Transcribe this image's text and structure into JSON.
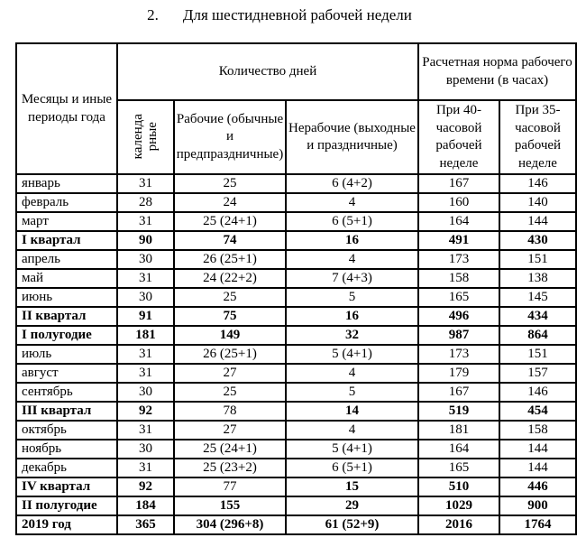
{
  "page": {
    "title_number": "2.",
    "title_text": "Для шестидневной рабочей недели"
  },
  "table": {
    "header": {
      "months": "Месяцы и иные периоды года",
      "days_group": "Количество дней",
      "hours_group": "Расчетная норма рабочего времени (в часах)",
      "calendar_line1": "календа",
      "calendar_line2": "рные",
      "working": "Рабочие (обычные и предпраздничные)",
      "nonworking": "Нерабочие (выходные и праздничные)",
      "week40": "При 40-часовой рабочей неделе",
      "week35": "При 35-часовой рабочей неделе"
    },
    "rows": [
      {
        "label": "январь",
        "calendar": "31",
        "working": "25",
        "nonworking": "6 (4+2)",
        "h40": "167",
        "h35": "146",
        "bold": false
      },
      {
        "label": "февраль",
        "calendar": "28",
        "working": "24",
        "nonworking": "4",
        "h40": "160",
        "h35": "140",
        "bold": false
      },
      {
        "label": "март",
        "calendar": "31",
        "working": "25 (24+1)",
        "nonworking": "6 (5+1)",
        "h40": "164",
        "h35": "144",
        "bold": false
      },
      {
        "label": "I квартал",
        "calendar": "90",
        "working": "74",
        "nonworking": "16",
        "h40": "491",
        "h35": "430",
        "bold": true
      },
      {
        "label": "апрель",
        "calendar": "30",
        "working": "26 (25+1)",
        "nonworking": "4",
        "h40": "173",
        "h35": "151",
        "bold": false
      },
      {
        "label": "май",
        "calendar": "31",
        "working": "24 (22+2)",
        "nonworking": "7 (4+3)",
        "h40": "158",
        "h35": "138",
        "bold": false
      },
      {
        "label": "июнь",
        "calendar": "30",
        "working": "25",
        "nonworking": "5",
        "h40": "165",
        "h35": "145",
        "bold": false
      },
      {
        "label": "II квартал",
        "calendar": "91",
        "working": "75",
        "nonworking": "16",
        "h40": "496",
        "h35": "434",
        "bold": true
      },
      {
        "label": "I полугодие",
        "calendar": "181",
        "working": "149",
        "nonworking": "32",
        "h40": "987",
        "h35": "864",
        "bold": true
      },
      {
        "label": "июль",
        "calendar": "31",
        "working": "26 (25+1)",
        "nonworking": "5 (4+1)",
        "h40": "173",
        "h35": "151",
        "bold": false
      },
      {
        "label": "август",
        "calendar": "31",
        "working": "27",
        "nonworking": "4",
        "h40": "179",
        "h35": "157",
        "bold": false
      },
      {
        "label": "сентябрь",
        "calendar": "30",
        "working": "25",
        "nonworking": "5",
        "h40": "167",
        "h35": "146",
        "bold": false
      },
      {
        "label": "III квартал",
        "calendar": "92",
        "working": "78",
        "nonworking": "14",
        "h40": "519",
        "h35": "454",
        "bold": true,
        "working_bold": false
      },
      {
        "label": "октябрь",
        "calendar": "31",
        "working": "27",
        "nonworking": "4",
        "h40": "181",
        "h35": "158",
        "bold": false
      },
      {
        "label": "ноябрь",
        "calendar": "30",
        "working": "25 (24+1)",
        "nonworking": "5 (4+1)",
        "h40": "164",
        "h35": "144",
        "bold": false
      },
      {
        "label": "декабрь",
        "calendar": "31",
        "working": "25 (23+2)",
        "nonworking": "6 (5+1)",
        "h40": "165",
        "h35": "144",
        "bold": false
      },
      {
        "label": "IV квартал",
        "calendar": "92",
        "working": "77",
        "nonworking": "15",
        "h40": "510",
        "h35": "446",
        "bold": true,
        "working_bold": false
      },
      {
        "label": "II полугодие",
        "calendar": "184",
        "working": "155",
        "nonworking": "29",
        "h40": "1029",
        "h35": "900",
        "bold": true
      },
      {
        "label": "2019 год",
        "calendar": "365",
        "working": "304 (296+8)",
        "nonworking": "61 (52+9)",
        "h40": "2016",
        "h35": "1764",
        "bold": true
      }
    ]
  },
  "colors": {
    "background": "#ffffff",
    "text": "#000000",
    "border": "#000000"
  }
}
